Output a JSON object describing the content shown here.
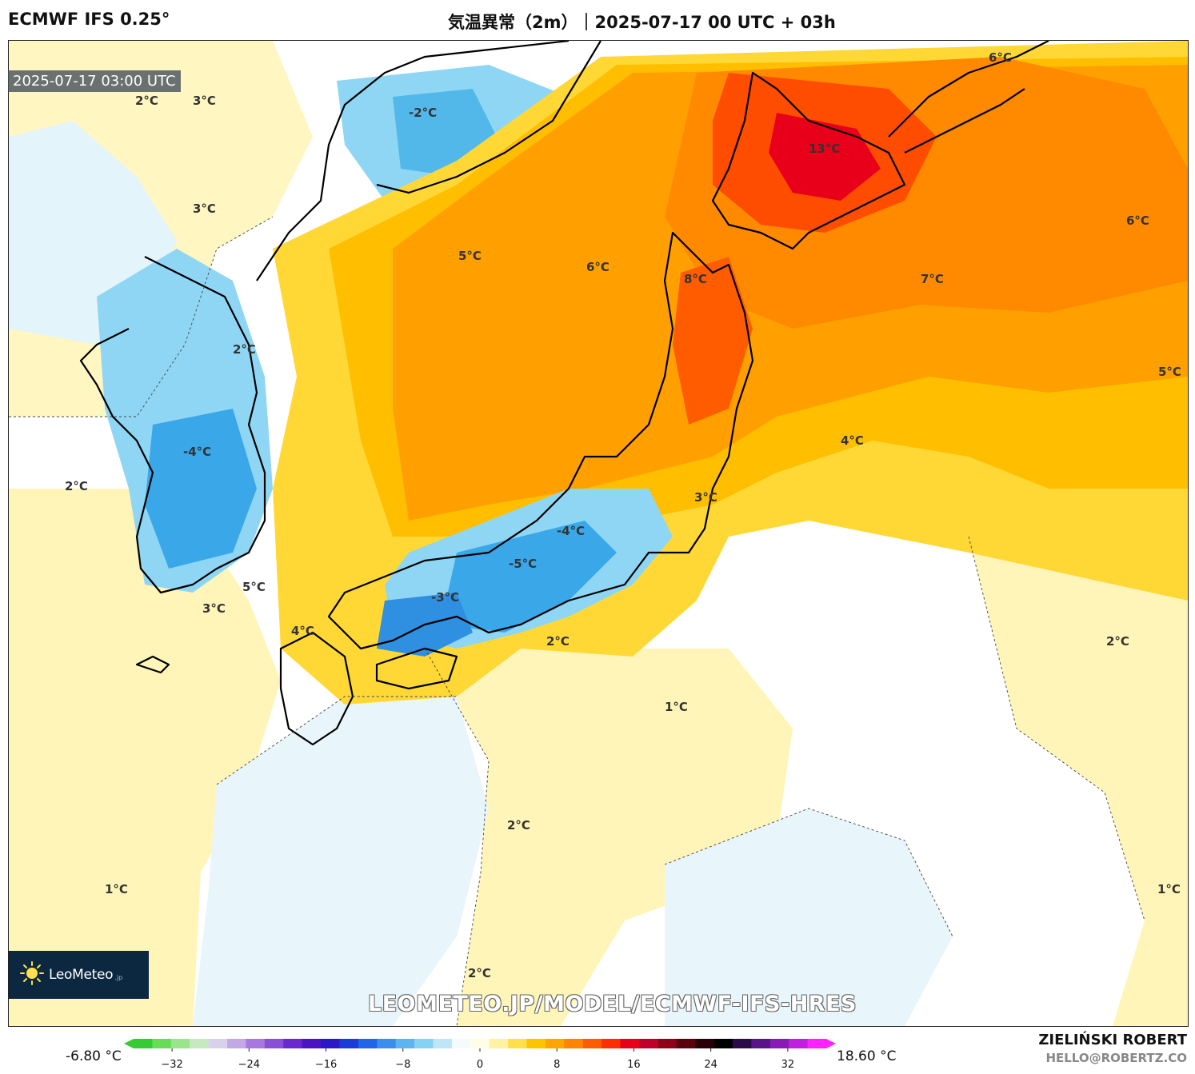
{
  "header": {
    "model": "ECMWF IFS 0.25°",
    "title": "気温異常（2m）｜2025-07-17 00 UTC + 03h"
  },
  "map": {
    "valid_time": "2025-07-17 03:00 UTC",
    "labels": [
      "2°C",
      "3°C",
      "-2°C",
      "6°C",
      "13°C",
      "3°C",
      "5°C",
      "6°C",
      "6°C",
      "8°C",
      "7°C",
      "2°C",
      "5°C",
      "-4°C",
      "4°C",
      "2°C",
      "3°C",
      "-4°C",
      "5°C",
      "-5°C",
      "-3°C",
      "3°C",
      "4°C",
      "2°C",
      "2°C",
      "1°C",
      "2°C",
      "1°C",
      "1°C",
      "2°C"
    ]
  },
  "branding": {
    "logo_text": "LeoMeteo",
    "logo_suffix": ".jp",
    "url": "LEOMETEO.JP/MODEL/ECMWF-IFS-HRES",
    "author": "ZIELIŃSKI ROBERT",
    "email": "HELLO@ROBERTZ.CO"
  },
  "colorbar": {
    "min_label": "-6.80 °C",
    "max_label": "18.60 °C",
    "ticks": [
      "−32",
      "−24",
      "−16",
      "−8",
      "0",
      "8",
      "16",
      "24",
      "32"
    ],
    "tick_values": [
      -32,
      -24,
      -16,
      -8,
      0,
      8,
      16,
      24,
      32
    ],
    "range": [
      -36,
      36
    ],
    "colors": [
      "#33cc33",
      "#66dd55",
      "#99e68a",
      "#c8e8c0",
      "#d9d0ea",
      "#c2a8e6",
      "#a878e0",
      "#8a4fd8",
      "#6a28d0",
      "#4a14c4",
      "#2a18c8",
      "#1a3cd8",
      "#1f66e8",
      "#3a8ef0",
      "#5cb4f2",
      "#86d2f4",
      "#bfe6f8",
      "#f5fafc",
      "#fffde6",
      "#fff2a0",
      "#ffe04a",
      "#ffc400",
      "#ffa500",
      "#ff8400",
      "#ff5c00",
      "#ff2e00",
      "#e8001a",
      "#c0002a",
      "#8e0018",
      "#5a000c",
      "#2a0008",
      "#000000",
      "#2a0a4a",
      "#5a148a",
      "#8a1ab8",
      "#c21ee0",
      "#ff22ff"
    ]
  }
}
